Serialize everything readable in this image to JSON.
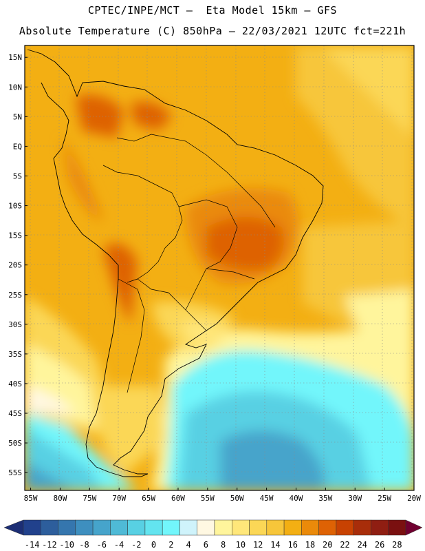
{
  "header": {
    "line1": "CPTEC/INPE/MCT –  Eta Model 15km – GFS",
    "line2": "Absolute Temperature (C) 850hPa – 22/03/2021 12UTC fct=221h"
  },
  "axes": {
    "lat_labels": [
      "15N",
      "10N",
      "5N",
      "EQ",
      "5S",
      "10S",
      "15S",
      "20S",
      "25S",
      "30S",
      "35S",
      "40S",
      "45S",
      "50S",
      "55S"
    ],
    "lat_values": [
      15,
      10,
      5,
      0,
      -5,
      -10,
      -15,
      -20,
      -25,
      -30,
      -35,
      -40,
      -45,
      -50,
      -55
    ],
    "lon_labels": [
      "85W",
      "80W",
      "75W",
      "70W",
      "65W",
      "60W",
      "55W",
      "50W",
      "45W",
      "40W",
      "35W",
      "30W",
      "25W",
      "20W"
    ],
    "lon_values": [
      -85,
      -80,
      -75,
      -70,
      -65,
      -60,
      -55,
      -50,
      -45,
      -40,
      -35,
      -30,
      -25,
      -20
    ],
    "lon_range": [
      -86,
      -20
    ],
    "lat_range": [
      -58,
      17
    ]
  },
  "colorbar": {
    "ticks": [
      "-14",
      "-12",
      "-10",
      "-8",
      "-6",
      "-4",
      "-2",
      "0",
      "2",
      "4",
      "6",
      "8",
      "10",
      "12",
      "14",
      "16",
      "18",
      "20",
      "22",
      "24",
      "26",
      "28"
    ],
    "colors": [
      "#21418c",
      "#2d5e9c",
      "#3576ae",
      "#3e8fbf",
      "#46a4cb",
      "#4fbad6",
      "#58d0e3",
      "#63e4ef",
      "#72f6fb",
      "#cff3fb",
      "#fff8e2",
      "#fff59c",
      "#ffe77a",
      "#fbd756",
      "#f7c63a",
      "#f3af13",
      "#ea8a0a",
      "#de6204",
      "#c84202",
      "#a82d0a",
      "#8f1e12",
      "#7a1010"
    ],
    "low_color": "#1c2e75",
    "high_color": "#700030"
  }
}
